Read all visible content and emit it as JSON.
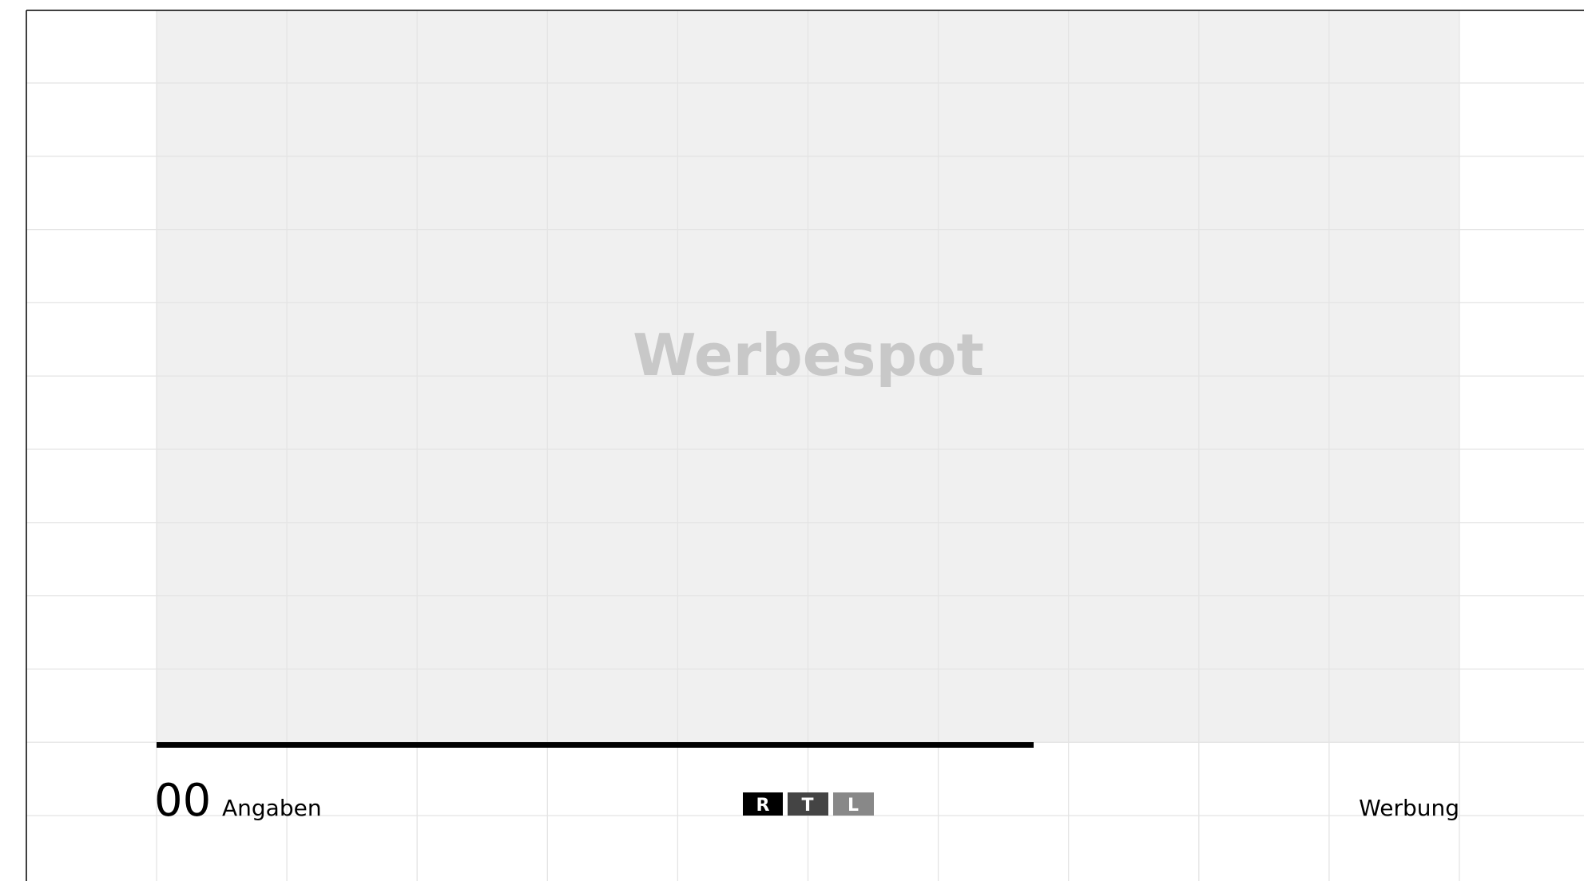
{
  "ad_placeholder": "Werbespot",
  "footer": {
    "counter": "00",
    "counter_label": "Angaben",
    "logo": [
      "R",
      "T",
      "L"
    ],
    "label": "Werbung"
  }
}
